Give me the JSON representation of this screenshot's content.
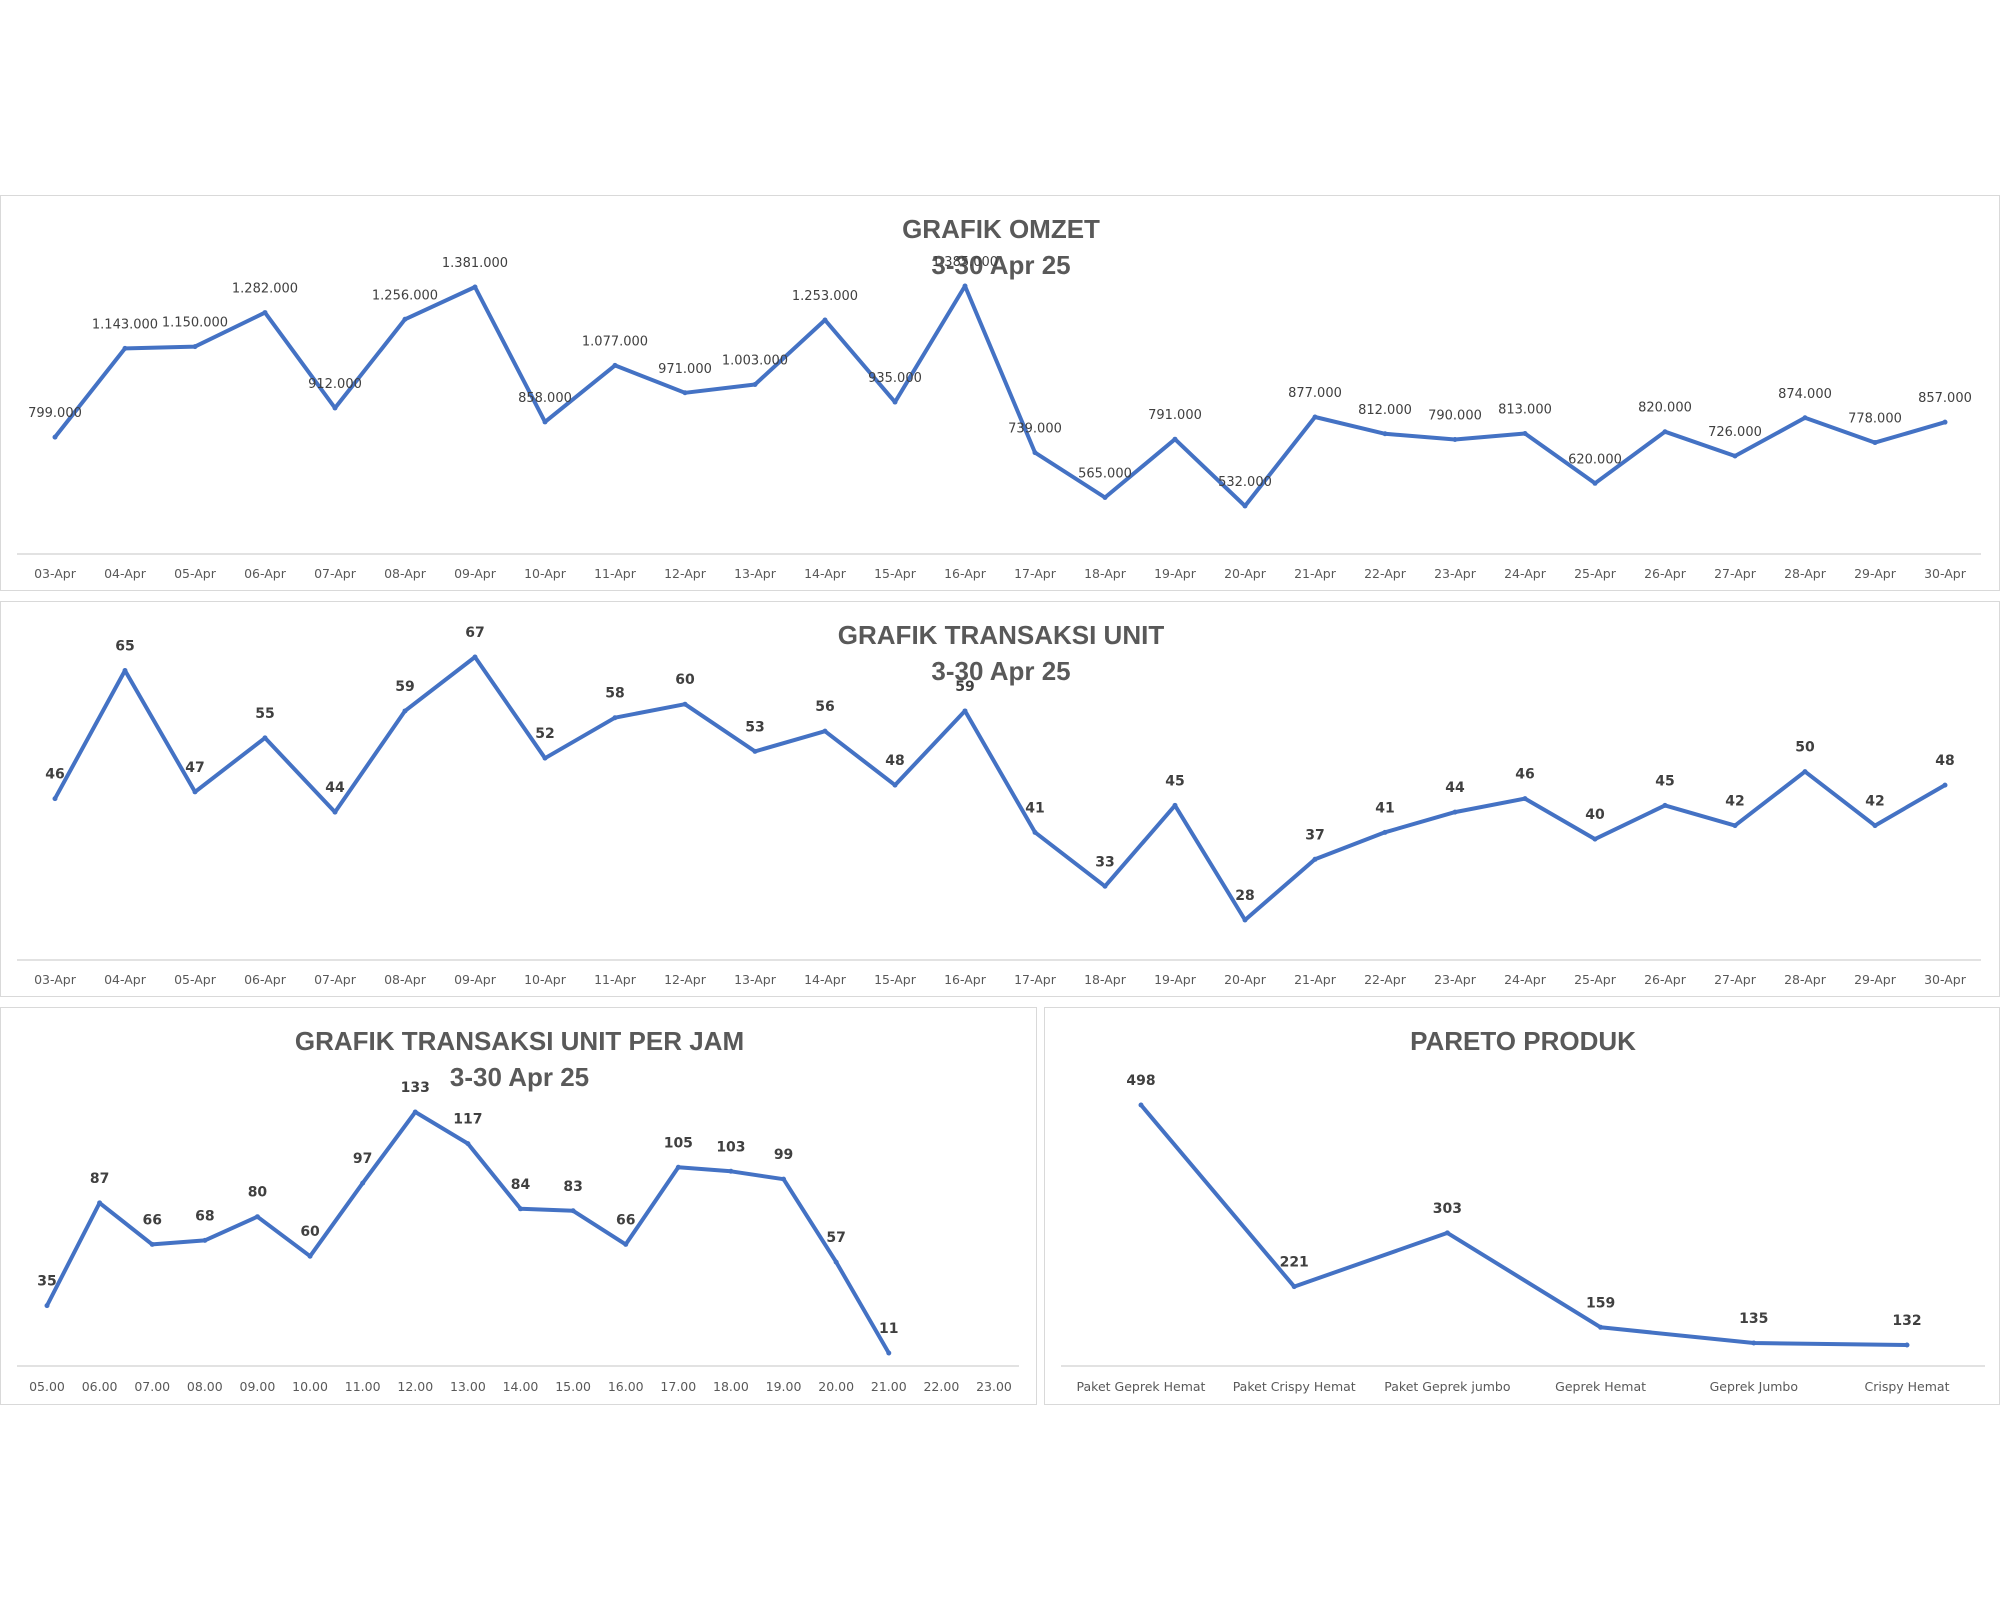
{
  "chart_data": [
    {
      "type": "line",
      "title": "GRAFIK OMZET",
      "subtitle": "3-30 Apr 25",
      "categories": [
        "03-Apr",
        "04-Apr",
        "05-Apr",
        "06-Apr",
        "07-Apr",
        "08-Apr",
        "09-Apr",
        "10-Apr",
        "11-Apr",
        "12-Apr",
        "13-Apr",
        "14-Apr",
        "15-Apr",
        "16-Apr",
        "17-Apr",
        "18-Apr",
        "19-Apr",
        "20-Apr",
        "21-Apr",
        "22-Apr",
        "23-Apr",
        "24-Apr",
        "25-Apr",
        "26-Apr",
        "27-Apr",
        "28-Apr",
        "29-Apr",
        "30-Apr"
      ],
      "values": [
        799000,
        1143000,
        1150000,
        1282000,
        912000,
        1256000,
        1381000,
        858000,
        1077000,
        971000,
        1003000,
        1253000,
        935000,
        1385000,
        739000,
        565000,
        791000,
        532000,
        877000,
        812000,
        790000,
        813000,
        620000,
        820000,
        726000,
        874000,
        778000,
        857000
      ],
      "labels": [
        "799.000",
        "1.143.000",
        "1.150.000",
        "1.282.000",
        "912.000",
        "1.256.000",
        "1.381.000",
        "858.000",
        "1.077.000",
        "971.000",
        "1.003.000",
        "1.253.000",
        "935.000",
        "1.385.000",
        "739.000",
        "565.000",
        "791.000",
        "532.000",
        "877.000",
        "812.000",
        "790.000",
        "813.000",
        "620.000",
        "820.000",
        "726.000",
        "874.000",
        "778.000",
        "857.000"
      ],
      "ylim": [
        0,
        1600000
      ],
      "grid": false,
      "legend": "none",
      "color": "#4472c4"
    },
    {
      "type": "line",
      "title": "GRAFIK TRANSAKSI UNIT",
      "subtitle": "3-30 Apr 25",
      "categories": [
        "03-Apr",
        "04-Apr",
        "05-Apr",
        "06-Apr",
        "07-Apr",
        "08-Apr",
        "09-Apr",
        "10-Apr",
        "11-Apr",
        "12-Apr",
        "13-Apr",
        "14-Apr",
        "15-Apr",
        "16-Apr",
        "17-Apr",
        "18-Apr",
        "19-Apr",
        "20-Apr",
        "21-Apr",
        "22-Apr",
        "23-Apr",
        "24-Apr",
        "25-Apr",
        "26-Apr",
        "27-Apr",
        "28-Apr",
        "29-Apr",
        "30-Apr"
      ],
      "values": [
        46,
        65,
        47,
        55,
        44,
        59,
        67,
        52,
        58,
        60,
        53,
        56,
        48,
        59,
        41,
        33,
        45,
        28,
        37,
        41,
        44,
        46,
        40,
        45,
        42,
        50,
        42,
        48
      ],
      "ylim": [
        0,
        80
      ],
      "grid": false,
      "legend": "none",
      "color": "#4472c4"
    },
    {
      "type": "line",
      "title": "GRAFIK TRANSAKSI UNIT PER JAM",
      "subtitle": "3-30 Apr 25",
      "categories": [
        "05.00",
        "06.00",
        "07.00",
        "08.00",
        "09.00",
        "10.00",
        "11.00",
        "12.00",
        "13.00",
        "14.00",
        "15.00",
        "16.00",
        "17.00",
        "18.00",
        "19.00",
        "20.00",
        "21.00",
        "22.00",
        "23.00"
      ],
      "values": [
        35,
        87,
        66,
        68,
        80,
        60,
        97,
        133,
        117,
        84,
        83,
        66,
        105,
        103,
        99,
        57,
        11,
        null,
        null
      ],
      "ylim": [
        0,
        150
      ],
      "grid": false,
      "legend": "none",
      "color": "#4472c4"
    },
    {
      "type": "line",
      "title": "PARETO PRODUK",
      "categories": [
        "Paket Geprek Hemat",
        "Paket Crispy Hemat",
        "Paket Geprek jumbo",
        "Geprek Hemat",
        "Geprek Jumbo",
        "Crispy Hemat"
      ],
      "values": [
        498,
        221,
        303,
        159,
        135,
        132
      ],
      "ylim": [
        0,
        550
      ],
      "grid": false,
      "legend": "none",
      "color": "#4472c4"
    }
  ]
}
